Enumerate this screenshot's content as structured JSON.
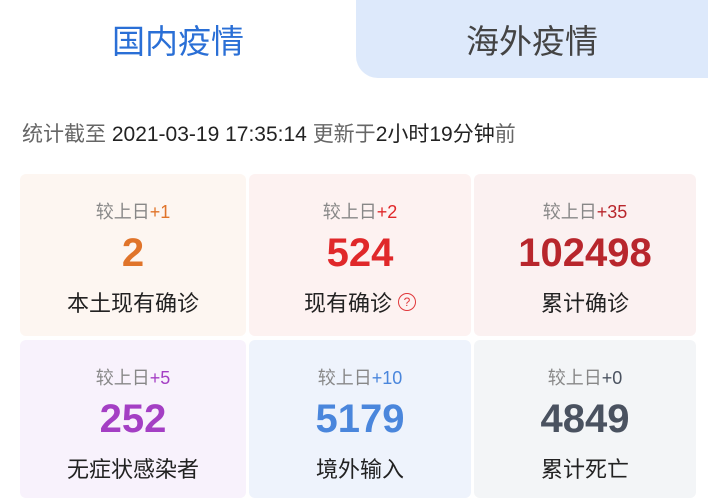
{
  "tabs": [
    {
      "label": "国内疫情",
      "active": true
    },
    {
      "label": "海外疫情",
      "active": false
    }
  ],
  "meta": {
    "prefix": "统计截至",
    "datetime": "2021-03-19 17:35:14",
    "updated_prefix": "更新于",
    "updated_ago": "2小时19分钟",
    "updated_suffix": "前"
  },
  "compare_label": "较上日",
  "cards": [
    {
      "label": "本土现有确诊",
      "value": "2",
      "delta": "+1",
      "color": "#e0742a",
      "bg": "#fdf6f1"
    },
    {
      "label": "现有确诊",
      "value": "524",
      "delta": "+2",
      "color": "#e0282a",
      "bg": "#fdf2f1",
      "help_icon": "question-circle-icon"
    },
    {
      "label": "累计确诊",
      "value": "102498",
      "delta": "+35",
      "color": "#b8262c",
      "bg": "#fbf1f1"
    },
    {
      "label": "无症状感染者",
      "value": "252",
      "delta": "+5",
      "color": "#a43fc4",
      "bg": "#f8f2fc"
    },
    {
      "label": "境外输入",
      "value": "5179",
      "delta": "+10",
      "color": "#4a86dc",
      "bg": "#eef3fc"
    },
    {
      "label": "累计死亡",
      "value": "4849",
      "delta": "+0",
      "color": "#4a5260",
      "bg": "#f3f5f7"
    }
  ]
}
